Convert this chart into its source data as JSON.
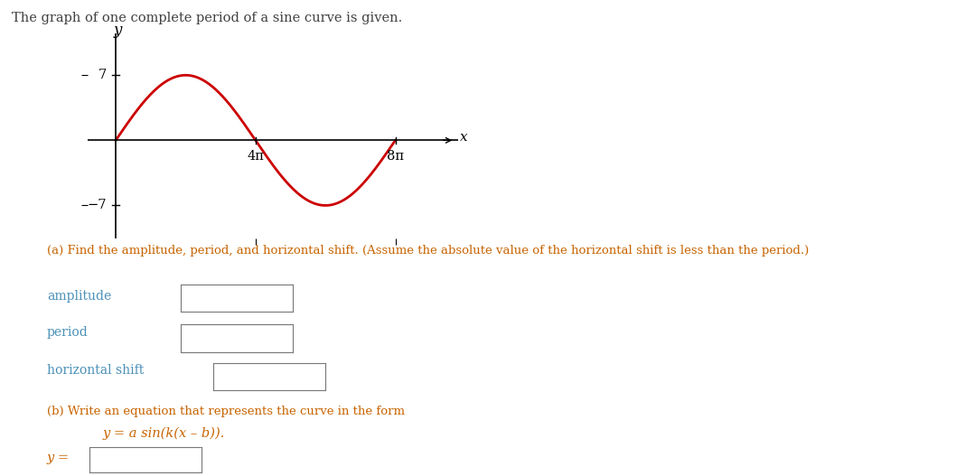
{
  "title_text": "The graph of one complete period of a sine curve is given.",
  "title_color": "#404040",
  "title_fontsize": 10.5,
  "graph_bg": "#ffffff",
  "curve_color": "#cc0000",
  "curve_linewidth": 2.0,
  "amplitude": 7,
  "y_label": "y",
  "x_label": "x",
  "axis_color": "#000000",
  "text_color_blue": "#4a90b8",
  "text_color_orange": "#c86400",
  "text_color_dark": "#404040",
  "label_a": "(a) Find the amplitude, period, and horizontal shift. (Assume the absolute value of the horizontal shift is less than the period.)",
  "label_amplitude": "amplitude",
  "label_period": "period",
  "label_hshift": "horizontal shift",
  "label_b": "(b) Write an equation that represents the curve in the form",
  "formula": "y = a sin(k(x – b)).",
  "y_eq": "y =",
  "font_family": "DejaVu Serif",
  "tick_label_4pi": "4π",
  "tick_label_8pi": "8π",
  "tick_label_7": "7",
  "tick_label_neg7": "−7"
}
